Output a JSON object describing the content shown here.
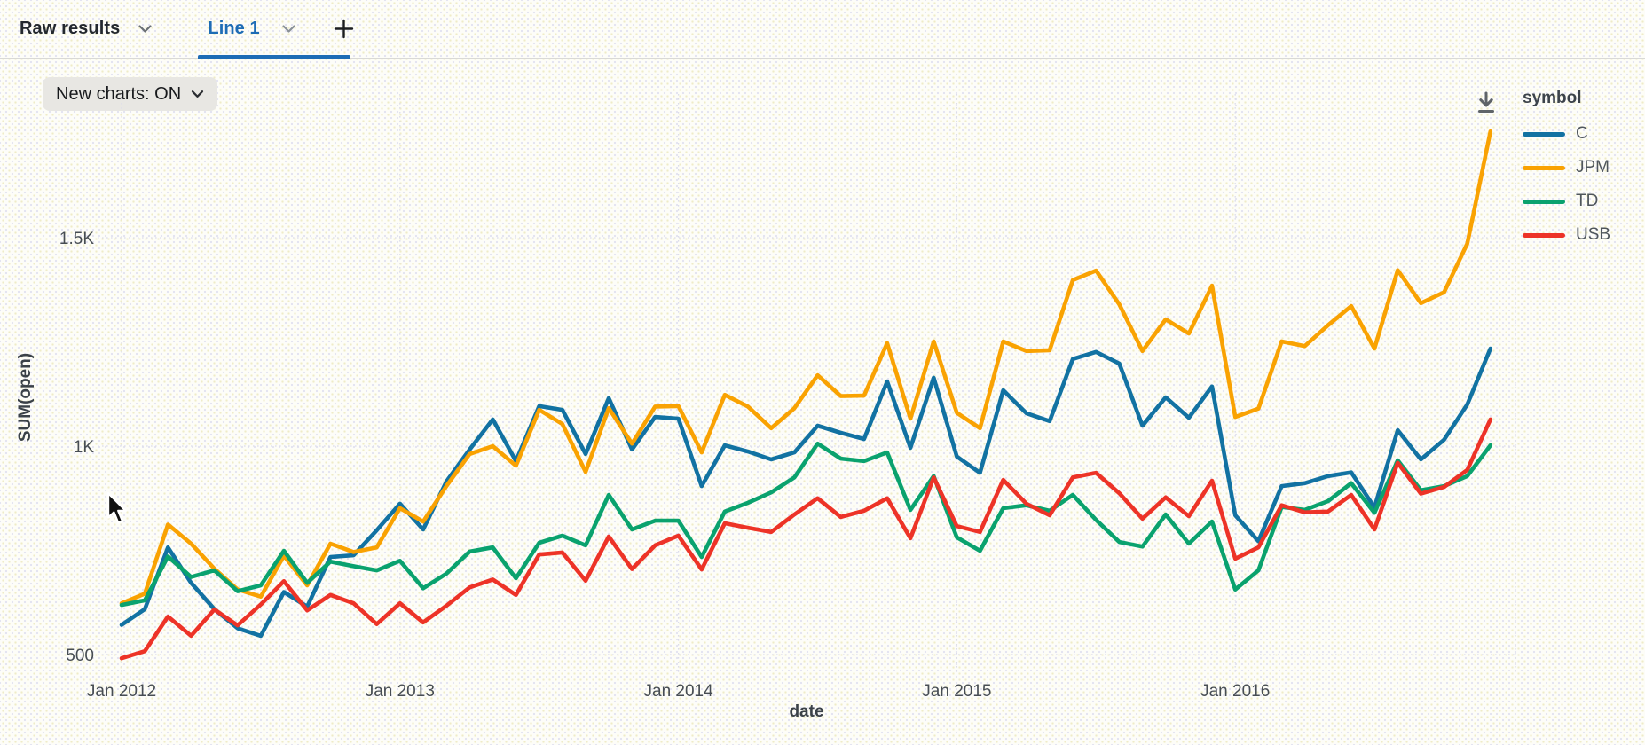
{
  "topbar": {
    "tabs": [
      {
        "label": "Raw results",
        "active": false
      },
      {
        "label": "Line 1",
        "active": true
      }
    ],
    "add_tab_label": "+"
  },
  "controls": {
    "new_charts_label": "New charts: ON"
  },
  "icons": {
    "tab_dropdown": "chevron-down-icon",
    "add_tab": "plus-icon",
    "download": "download-icon",
    "cursor": "mouse-arrow-cursor"
  },
  "colors": {
    "accent_tab": "#1d6cb5",
    "series_C": "#1272A2",
    "series_JPM": "#F9A202",
    "series_TD": "#0AA26E",
    "series_USB": "#ED3327",
    "gridline": "#dcdcea"
  },
  "legend": {
    "title": "symbol",
    "items": [
      {
        "label": "C",
        "color": "#1272A2"
      },
      {
        "label": "JPM",
        "color": "#F9A202"
      },
      {
        "label": "TD",
        "color": "#0AA26E"
      },
      {
        "label": "USB",
        "color": "#ED3327"
      }
    ]
  },
  "chart_data": {
    "type": "line",
    "title": "",
    "xlabel": "date",
    "ylabel": "SUM(open)",
    "legend_position": "right",
    "grid": "dotted",
    "ylim": [
      450,
      1800
    ],
    "y_axis_ticks": [
      {
        "label": "500",
        "value": 500
      },
      {
        "label": "1K",
        "value": 1000
      },
      {
        "label": "1.5K",
        "value": 1500
      }
    ],
    "x_axis_ticks": [
      {
        "label": "Jan 2012",
        "index": 0
      },
      {
        "label": "Jan 2013",
        "index": 12
      },
      {
        "label": "Jan 2014",
        "index": 24
      },
      {
        "label": "Jan 2015",
        "index": 36
      },
      {
        "label": "Jan 2016",
        "index": 48
      }
    ],
    "x": [
      "Jan 2012",
      "Feb 2012",
      "Mar 2012",
      "Apr 2012",
      "May 2012",
      "Jun 2012",
      "Jul 2012",
      "Aug 2012",
      "Sep 2012",
      "Oct 2012",
      "Nov 2012",
      "Dec 2012",
      "Jan 2013",
      "Feb 2013",
      "Mar 2013",
      "Apr 2013",
      "May 2013",
      "Jun 2013",
      "Jul 2013",
      "Aug 2013",
      "Sep 2013",
      "Oct 2013",
      "Nov 2013",
      "Dec 2013",
      "Jan 2014",
      "Feb 2014",
      "Mar 2014",
      "Apr 2014",
      "May 2014",
      "Jun 2014",
      "Jul 2014",
      "Aug 2014",
      "Sep 2014",
      "Oct 2014",
      "Nov 2014",
      "Dec 2014",
      "Jan 2015",
      "Feb 2015",
      "Mar 2015",
      "Apr 2015",
      "May 2015",
      "Jun 2015",
      "Jul 2015",
      "Aug 2015",
      "Sep 2015",
      "Oct 2015",
      "Nov 2015",
      "Dec 2015",
      "Jan 2016",
      "Feb 2016",
      "Mar 2016",
      "Apr 2016",
      "May 2016",
      "Jun 2016",
      "Jul 2016",
      "Aug 2016",
      "Sep 2016",
      "Oct 2016",
      "Nov 2016",
      "Dec 2016"
    ],
    "series": [
      {
        "name": "C",
        "color": "#1272A2",
        "values": [
          571,
          609,
          757,
          672,
          609,
          563,
          545,
          650,
          615,
          734,
          738,
          798,
          862,
          800,
          915,
          992,
          1064,
          964,
          1096,
          1087,
          981,
          1115,
          992,
          1070,
          1066,
          904,
          1002,
          987,
          968,
          985,
          1049,
          1032,
          1017,
          1155,
          996,
          1164,
          975,
          936,
          1134,
          1079,
          1060,
          1209,
          1226,
          1198,
          1049,
          1117,
          1068,
          1143,
          834,
          772,
          904,
          911,
          928,
          937,
          853,
          1038,
          968,
          1015,
          1100,
          1234
        ]
      },
      {
        "name": "JPM",
        "color": "#F9A202",
        "values": [
          623,
          646,
          812,
          766,
          706,
          656,
          639,
          737,
          666,
          766,
          746,
          757,
          851,
          819,
          904,
          981,
          1000,
          953,
          1087,
          1053,
          938,
          1091,
          1006,
          1095,
          1096,
          985,
          1123,
          1095,
          1043,
          1091,
          1170,
          1120,
          1121,
          1247,
          1066,
          1251,
          1080,
          1043,
          1251,
          1228,
          1230,
          1398,
          1421,
          1340,
          1228,
          1304,
          1270,
          1385,
          1070,
          1090,
          1251,
          1240,
          1290,
          1336,
          1234,
          1422,
          1343,
          1369,
          1486,
          1755
        ]
      },
      {
        "name": "TD",
        "color": "#0AA26E",
        "values": [
          619,
          630,
          735,
          686,
          702,
          652,
          666,
          749,
          672,
          723,
          712,
          702,
          725,
          659,
          694,
          747,
          757,
          683,
          768,
          785,
          762,
          883,
          800,
          821,
          821,
          734,
          843,
          864,
          889,
          925,
          1006,
          970,
          964,
          985,
          847,
          928,
          781,
          749,
          851,
          858,
          845,
          883,
          823,
          770,
          759,
          836,
          766,
          819,
          656,
          702,
          854,
          847,
          868,
          911,
          840,
          966,
          894,
          904,
          928,
          1002
        ]
      },
      {
        "name": "USB",
        "color": "#ED3327",
        "values": [
          491,
          508,
          591,
          545,
          608,
          570,
          620,
          676,
          606,
          643,
          623,
          573,
          623,
          577,
          617,
          661,
          680,
          643,
          740,
          745,
          677,
          783,
          705,
          762,
          785,
          704,
          815,
          804,
          794,
          836,
          875,
          830,
          845,
          875,
          779,
          925,
          808,
          794,
          919,
          862,
          834,
          925,
          936,
          887,
          826,
          877,
          832,
          917,
          730,
          757,
          858,
          841,
          843,
          883,
          800,
          960,
          886,
          902,
          943,
          1064
        ]
      }
    ]
  }
}
